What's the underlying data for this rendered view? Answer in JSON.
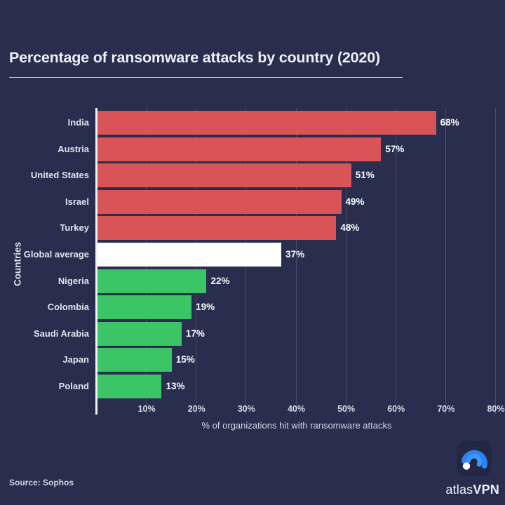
{
  "header": {
    "title": "Percentage of ransomware attacks by country (2020)"
  },
  "chart_data": {
    "type": "bar",
    "orientation": "horizontal",
    "title": "Percentage of ransomware attacks by country (2020)",
    "categories": [
      "India",
      "Austria",
      "United States",
      "Israel",
      "Turkey",
      "Global average",
      "Nigeria",
      "Colombia",
      "Saudi Arabia",
      "Japan",
      "Poland"
    ],
    "values": [
      68,
      57,
      51,
      49,
      48,
      37,
      22,
      19,
      17,
      15,
      13
    ],
    "value_labels": [
      "68%",
      "57%",
      "51%",
      "49%",
      "48%",
      "37%",
      "22%",
      "19%",
      "17%",
      "15%",
      "13%"
    ],
    "bar_colors": [
      "#d95457",
      "#d95457",
      "#d95457",
      "#d95457",
      "#d95457",
      "#ffffff",
      "#3cc564",
      "#3cc564",
      "#3cc564",
      "#3cc564",
      "#3cc564"
    ],
    "xlabel": "% of organizations hit with ransomware attacks",
    "ylabel": "Countries",
    "x_ticks": [
      "10%",
      "20%",
      "30%",
      "40%",
      "50%",
      "60%",
      "70%",
      "80%"
    ],
    "x_tick_values": [
      10,
      20,
      30,
      40,
      50,
      60,
      70,
      80
    ],
    "xlim": [
      0,
      80.6
    ],
    "grid": "vertical-gridlines",
    "legend": "none",
    "colors": {
      "above_average_bar": "#d95457",
      "below_average_bar": "#3cc564",
      "average_bar": "#ffffff",
      "background": "#292d4e",
      "axis_line": "#f2f3f6"
    }
  },
  "footer": {
    "source": "Source: Sophos",
    "brand_atlas": "atlas",
    "brand_vpn": "VPN"
  },
  "icons": {
    "logo": "atlasvpn-arc-logo"
  }
}
